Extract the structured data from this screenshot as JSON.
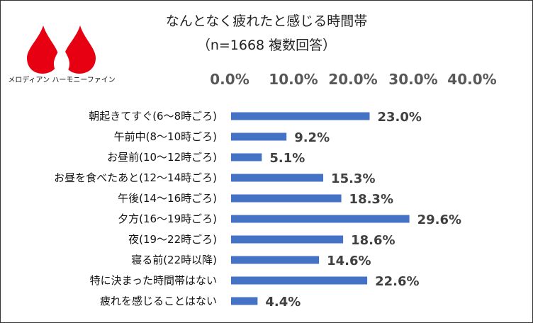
{
  "brand": {
    "name": "メロディアン ハーモニーファイン",
    "logo_color": "#e60012"
  },
  "chart_data": {
    "type": "bar",
    "orientation": "horizontal",
    "title": "なんとなく疲れたと感じる時間帯",
    "subtitle": "（n=1668 複数回答）",
    "categories": [
      "朝起きてすぐ(6～8時ごろ)",
      "午前中(8～10時ごろ)",
      "お昼前(10～12時ごろ)",
      "お昼を食べたあと(12～14時ごろ)",
      "午後(14～16時ごろ)",
      "夕方(16～19時ごろ)",
      "夜(19～22時ごろ)",
      "寝る前(22時以降)",
      "特に決まった時間帯はない",
      "疲れを感じることはない"
    ],
    "values": [
      23.0,
      9.2,
      5.1,
      15.3,
      18.3,
      29.6,
      18.6,
      14.6,
      22.6,
      4.4
    ],
    "value_labels": [
      "23.0%",
      "9.2%",
      "5.1%",
      "15.3%",
      "18.3%",
      "29.6%",
      "18.6%",
      "14.6%",
      "22.6%",
      "4.4%"
    ],
    "x_ticks": [
      "0.0%",
      "10.0%",
      "20.0%",
      "30.0%",
      "40.0%"
    ],
    "xlim": [
      0,
      40
    ],
    "axis_position": "top",
    "grid": false,
    "bar_color": "#4472c4"
  }
}
